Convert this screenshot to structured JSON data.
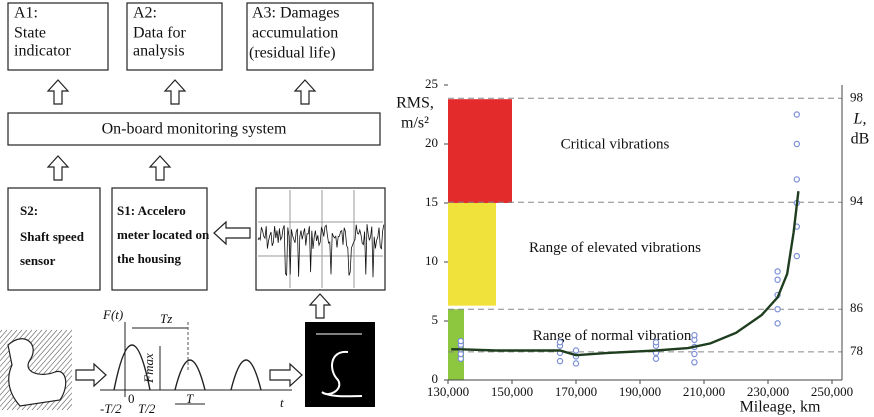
{
  "diagram": {
    "a1": {
      "code": "A1:",
      "lines": [
        "State",
        "indicator"
      ]
    },
    "a2": {
      "code": "A2:",
      "lines": [
        "Data for",
        "analysis"
      ]
    },
    "a3": {
      "code": "A3: Damages",
      "lines": [
        "accumulation",
        "(residual life)"
      ]
    },
    "system": "On-board monitoring system",
    "s2": {
      "code": "S2:",
      "lines": [
        "Shaft speed",
        "sensor"
      ]
    },
    "s1": {
      "code": "S1: Accelero",
      "lines": [
        "meter located on",
        "the housing"
      ]
    },
    "pulse": {
      "f_axis": "F(t)",
      "period": "Tz",
      "amplitude": "Fmax",
      "origin": "0",
      "t_axis": "t",
      "width": "T",
      "minus_half": "-T/2",
      "half": "T/2"
    }
  },
  "chart_data": {
    "type": "line",
    "xlabel": "Mileage, km",
    "ylabel": [
      "RMS,",
      "m/s²"
    ],
    "y2label": [
      "L,",
      "dB"
    ],
    "xlim": [
      130000,
      250000
    ],
    "xticks": [
      {
        "value": 130000,
        "label": "130,000"
      },
      {
        "value": 150000,
        "label": "150,000"
      },
      {
        "value": 170000,
        "label": "170,000"
      },
      {
        "value": 190000,
        "label": "190,000"
      },
      {
        "value": 210000,
        "label": "210,000"
      },
      {
        "value": 230000,
        "label": "230,000"
      },
      {
        "value": 250000,
        "label": "250,000"
      }
    ],
    "ylim": [
      0,
      25
    ],
    "yticks": [
      0,
      5,
      10,
      15,
      20,
      25
    ],
    "y2_scale": "db",
    "y2lim": [
      null,
      98.4
    ],
    "y2ticks": [
      78,
      86,
      94,
      98
    ],
    "y2_grid": true,
    "zones": [
      {
        "label": "Critical vibrations",
        "color": "#e32b2b",
        "xlim": [
          130000,
          150000
        ],
        "ylim": [
          15,
          23.8
        ]
      },
      {
        "label": "Range of elevated vibrations",
        "color": "#f0e23a",
        "xlim": [
          130000,
          145000
        ],
        "ylim": [
          6.3,
          15
        ]
      },
      {
        "label": "Range of normal vibrations",
        "color": "#8dc63f",
        "xlim": [
          130000,
          135000
        ],
        "ylim": [
          0,
          6
        ]
      }
    ],
    "trend": {
      "color": "#1f3d1f",
      "x": [
        131000,
        134000,
        145000,
        160000,
        165000,
        170000,
        180000,
        195000,
        205000,
        212000,
        220000,
        228000,
        233000,
        236000,
        238000,
        239500
      ],
      "y": [
        2.6,
        2.6,
        2.5,
        2.5,
        2.5,
        2.1,
        2.3,
        2.5,
        2.7,
        3.1,
        4.0,
        5.5,
        7.0,
        9.0,
        12.5,
        16
      ]
    },
    "measurements": {
      "color": "#7b8fd6",
      "x": [
        134000,
        134000,
        134000,
        134000,
        134000,
        165000,
        165000,
        165000,
        165000,
        170000,
        170000,
        170000,
        195000,
        195000,
        195000,
        195000,
        207000,
        207000,
        207000,
        207000,
        207000,
        233000,
        233000,
        233000,
        233000,
        233000,
        239000,
        239000,
        239000,
        239000,
        239000,
        239000
      ],
      "y": [
        1.8,
        2.2,
        2.6,
        3.0,
        3.3,
        1.6,
        2.3,
        2.9,
        3.2,
        1.4,
        2.0,
        2.5,
        1.8,
        2.3,
        2.9,
        3.2,
        1.5,
        2.2,
        2.8,
        3.4,
        3.8,
        4.8,
        6.0,
        7.2,
        8.5,
        9.2,
        10.5,
        13,
        15,
        17,
        20,
        22.5
      ]
    }
  }
}
